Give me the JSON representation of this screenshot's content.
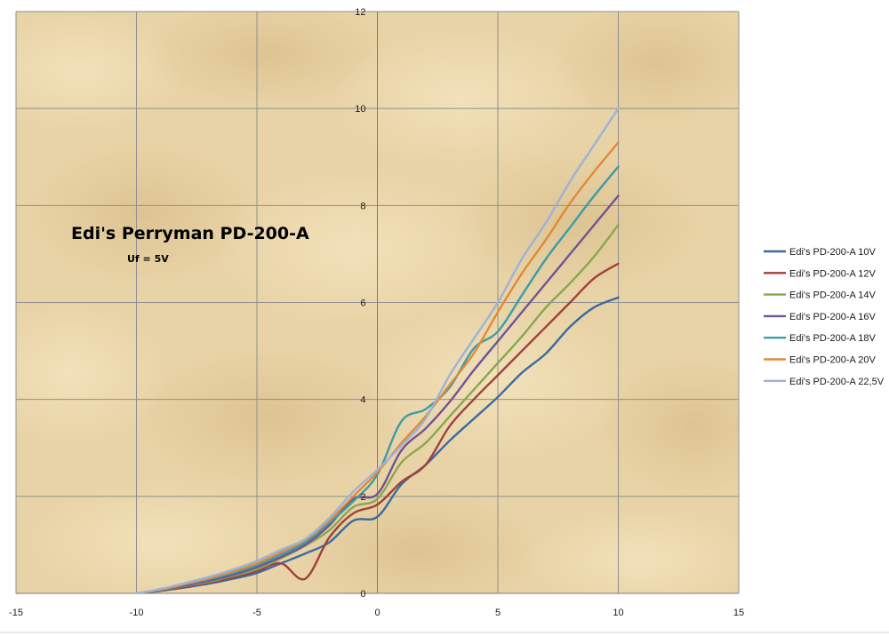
{
  "chart_data": {
    "type": "line",
    "title": "Edi's Perryman PD-200-A",
    "subtitle": "Uf = 5V",
    "xlabel": "",
    "ylabel": "",
    "xlim": [
      -15,
      15
    ],
    "ylim": [
      0,
      12
    ],
    "x_ticks": [
      "-15",
      "-10",
      "-5",
      "0",
      "5",
      "10",
      "15"
    ],
    "y_ticks": [
      "0",
      "2",
      "4",
      "6",
      "8",
      "10",
      "12"
    ],
    "grid": true,
    "legend_position": "right",
    "x": [
      -10,
      -9,
      -8,
      -7,
      -6,
      -5,
      -4,
      -3,
      -2,
      -1,
      0,
      1,
      2,
      3,
      4,
      5,
      6,
      7,
      8,
      9,
      10
    ],
    "series": [
      {
        "name": "Edi's PD-200-A 10V",
        "color": "#3c6aa2",
        "values": [
          0.0,
          0.05,
          0.12,
          0.2,
          0.3,
          0.42,
          0.62,
          0.82,
          1.05,
          1.5,
          1.58,
          2.25,
          2.65,
          3.15,
          3.6,
          4.05,
          4.55,
          4.95,
          5.5,
          5.9,
          6.1
        ]
      },
      {
        "name": "Edi's PD-200-A 12V",
        "color": "#a0403c",
        "values": [
          0.0,
          0.06,
          0.13,
          0.22,
          0.33,
          0.46,
          0.62,
          0.3,
          1.15,
          1.65,
          1.83,
          2.3,
          2.65,
          3.45,
          4.0,
          4.5,
          5.0,
          5.5,
          6.0,
          6.5,
          6.8
        ]
      },
      {
        "name": "Edi's PD-200-A 14V",
        "color": "#8aa650",
        "values": [
          0.0,
          0.06,
          0.15,
          0.24,
          0.36,
          0.5,
          0.72,
          0.98,
          1.3,
          1.78,
          1.95,
          2.7,
          3.1,
          3.65,
          4.2,
          4.75,
          5.3,
          5.9,
          6.4,
          6.95,
          7.6
        ]
      },
      {
        "name": "Edi's PD-200-A 16V",
        "color": "#6e5496",
        "values": [
          0.0,
          0.07,
          0.16,
          0.26,
          0.38,
          0.54,
          0.75,
          1.0,
          1.4,
          1.95,
          2.05,
          2.95,
          3.4,
          3.95,
          4.6,
          5.2,
          5.8,
          6.4,
          7.0,
          7.6,
          8.2
        ]
      },
      {
        "name": "Edi's PD-200-A 18V",
        "color": "#3c9ca8",
        "values": [
          0.0,
          0.08,
          0.18,
          0.29,
          0.42,
          0.58,
          0.8,
          1.05,
          1.45,
          1.9,
          2.45,
          3.55,
          3.8,
          4.25,
          5.05,
          5.4,
          6.15,
          6.9,
          7.55,
          8.2,
          8.8
        ]
      },
      {
        "name": "Edi's PD-200-A 20V",
        "color": "#e08a3a",
        "values": [
          0.0,
          0.08,
          0.19,
          0.31,
          0.45,
          0.62,
          0.85,
          1.1,
          1.5,
          2.0,
          2.5,
          3.1,
          3.65,
          4.3,
          4.95,
          5.8,
          6.6,
          7.3,
          8.05,
          8.7,
          9.3
        ]
      },
      {
        "name": "Edi's PD-200-A 22,5V",
        "color": "#9db3d6",
        "values": [
          0.0,
          0.09,
          0.21,
          0.34,
          0.49,
          0.67,
          0.9,
          1.12,
          1.55,
          2.1,
          2.55,
          3.05,
          3.6,
          4.5,
          5.25,
          6.0,
          6.9,
          7.65,
          8.5,
          9.25,
          10.0
        ]
      }
    ]
  }
}
